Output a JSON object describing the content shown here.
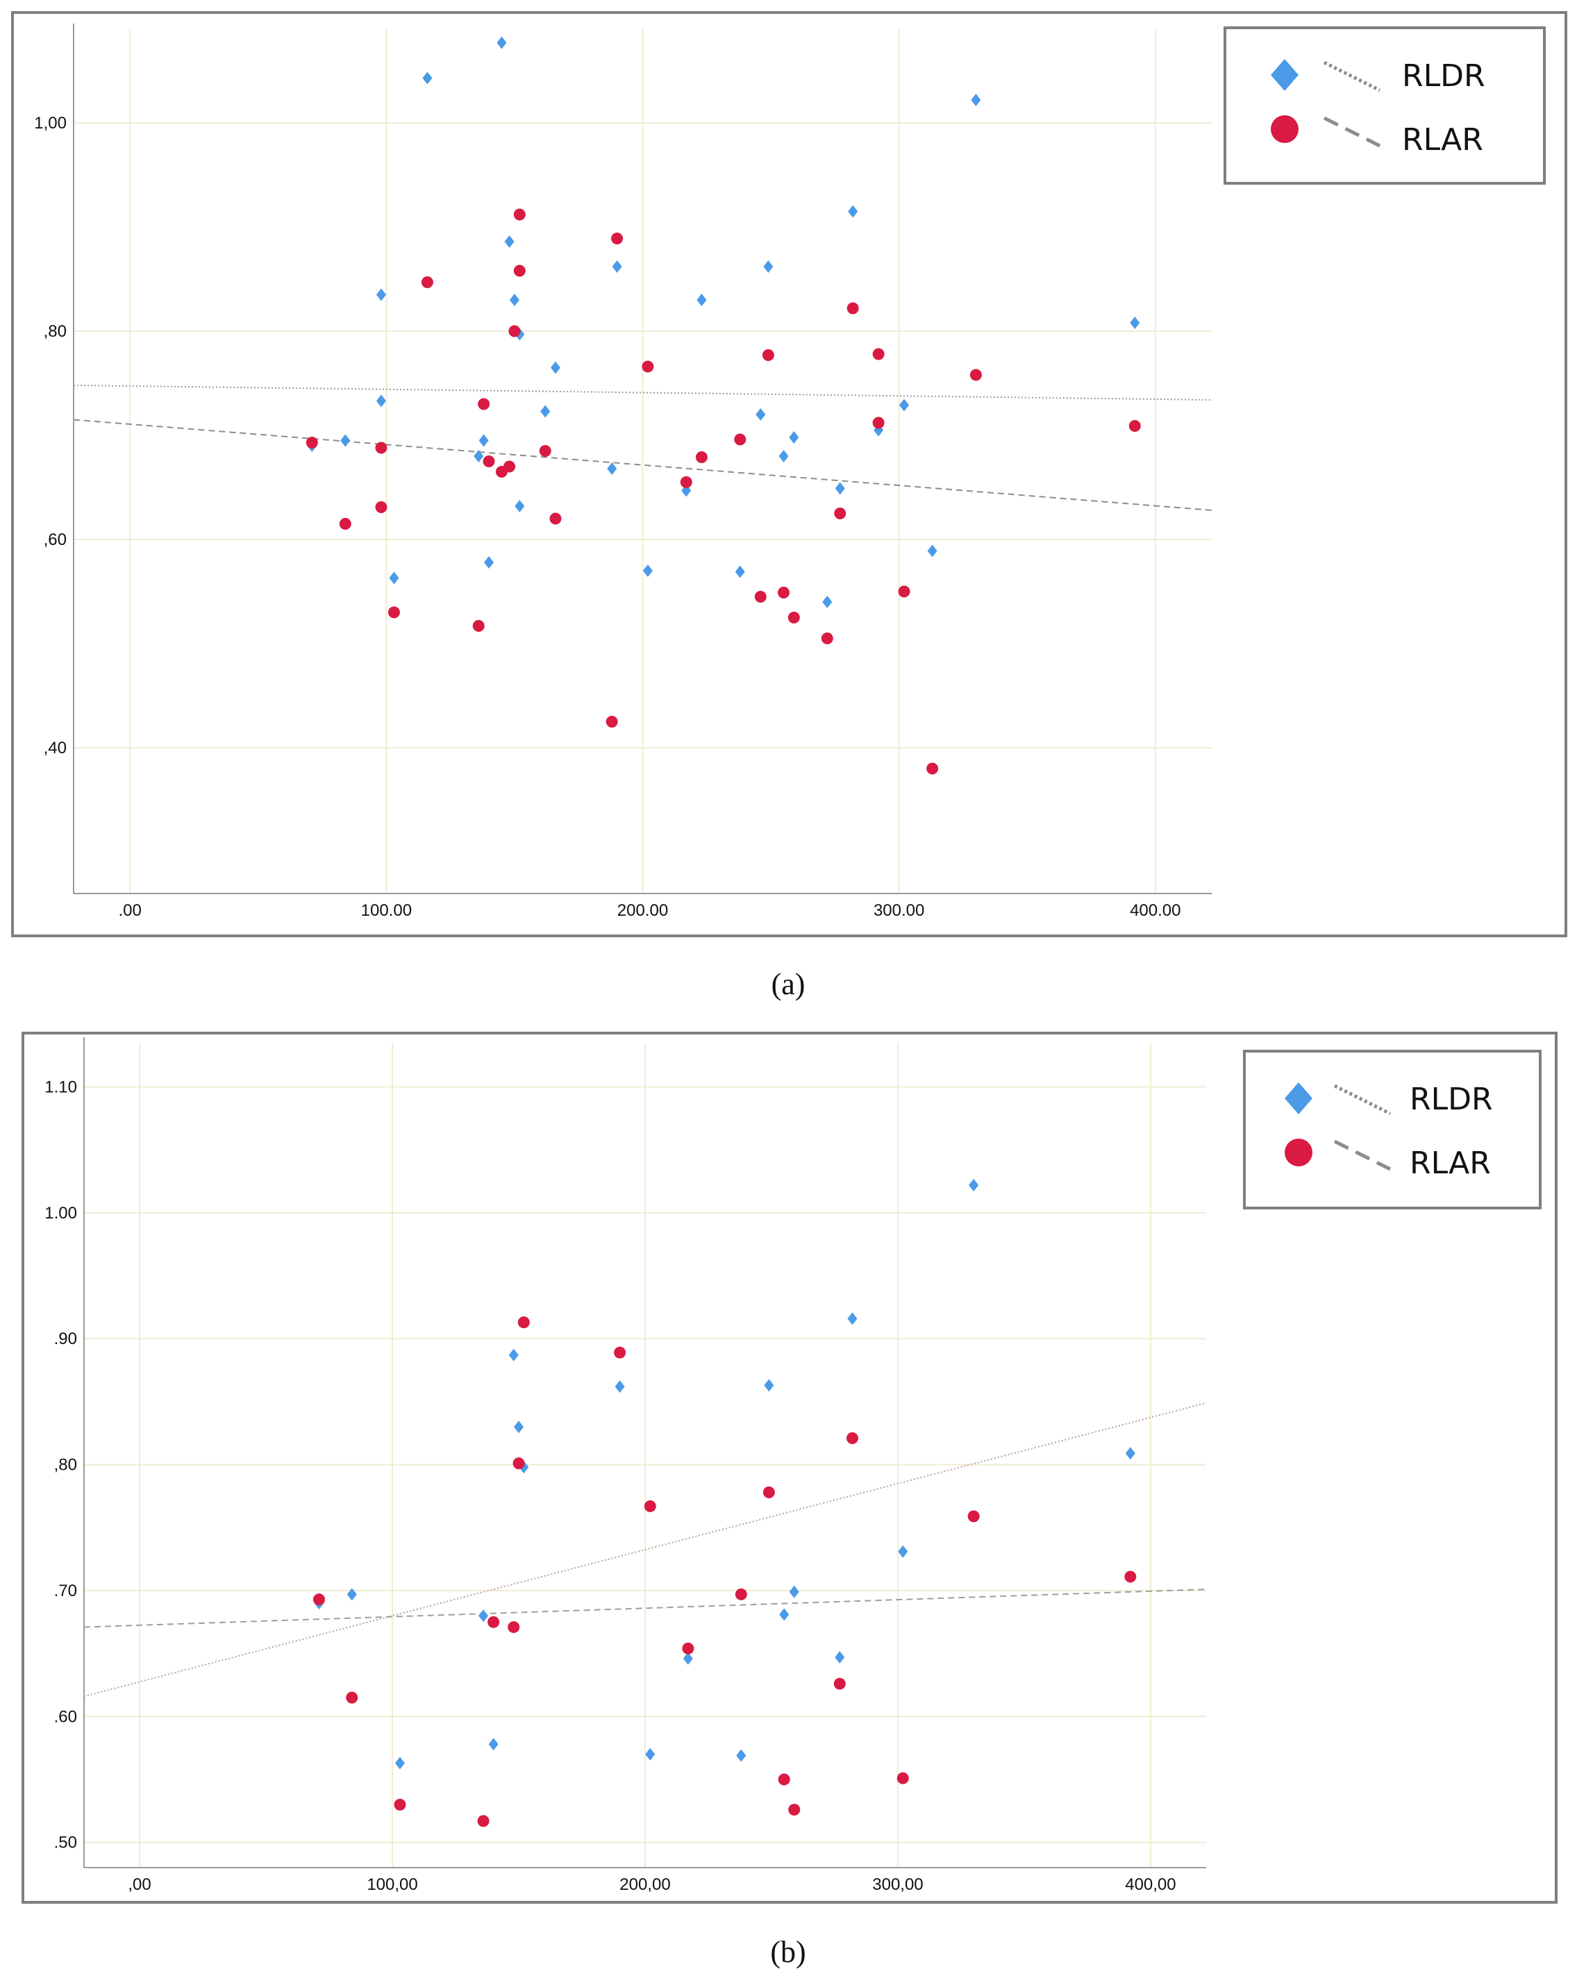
{
  "colors": {
    "rldr": "#4a9ae8",
    "rlar": "#d91a42",
    "gridline": "#f0ecd2",
    "frame": "#7f7f7f",
    "axis": "#9a9a9a",
    "trend_rldr": "#9a9a9a",
    "trend_rlar": "#8c8c8c",
    "trend_rldr_b": "#b89e9e",
    "trend_rlar_b": "#9e9e9e"
  },
  "legend": {
    "rldr": "RLDR",
    "rlar": "RLAR",
    "rldr_icon": "diamond-icon",
    "rlar_icon": "circle-icon",
    "rldr_line_icon": "dotted-line-icon",
    "rlar_line_icon": "dashed-line-icon"
  },
  "chart_data": [
    {
      "type": "scatter",
      "caption": "a",
      "caption_display": "(a)",
      "title": "",
      "xlabel": "",
      "ylabel": "",
      "xlim": [
        -22,
        422
      ],
      "ylim": [
        0.26,
        1.09
      ],
      "grid": true,
      "legend_position": "top-right",
      "x_ticks": [
        0,
        100,
        200,
        300,
        400
      ],
      "x_tick_labels": [
        ".00",
        "100.00",
        "200.00",
        "300.00",
        "400.00"
      ],
      "y_ticks": [
        0.4,
        0.6,
        0.8,
        1.0
      ],
      "y_tick_labels": [
        ",40",
        ",60",
        ",80",
        "1,00"
      ],
      "series": [
        {
          "name": "RLDR",
          "marker": "diamond",
          "points": [
            [
              71,
              0.69
            ],
            [
              84,
              0.695
            ],
            [
              98,
              0.835
            ],
            [
              98,
              0.733
            ],
            [
              103,
              0.563
            ],
            [
              116,
              1.043
            ],
            [
              136,
              0.68
            ],
            [
              138,
              0.695
            ],
            [
              140,
              0.578
            ],
            [
              145,
              1.077
            ],
            [
              148,
              0.886
            ],
            [
              150,
              0.83
            ],
            [
              152,
              0.797
            ],
            [
              152,
              0.632
            ],
            [
              162,
              0.723
            ],
            [
              166,
              0.765
            ],
            [
              188,
              0.668
            ],
            [
              190,
              0.862
            ],
            [
              202,
              0.57
            ],
            [
              217,
              0.647
            ],
            [
              223,
              0.83
            ],
            [
              238,
              0.569
            ],
            [
              246,
              0.72
            ],
            [
              249,
              0.862
            ],
            [
              255,
              0.68
            ],
            [
              259,
              0.698
            ],
            [
              272,
              0.54
            ],
            [
              277,
              0.649
            ],
            [
              282,
              0.915
            ],
            [
              292,
              0.705
            ],
            [
              302,
              0.729
            ],
            [
              313,
              0.589
            ],
            [
              330,
              1.022
            ],
            [
              392,
              0.808
            ]
          ],
          "trend": {
            "style": "dotted",
            "x": [
              -22,
              422
            ],
            "y": [
              0.748,
              0.734
            ]
          }
        },
        {
          "name": "RLAR",
          "marker": "circle",
          "points": [
            [
              71,
              0.693
            ],
            [
              84,
              0.615
            ],
            [
              98,
              0.688
            ],
            [
              98,
              0.631
            ],
            [
              103,
              0.53
            ],
            [
              116,
              0.847
            ],
            [
              136,
              0.517
            ],
            [
              138,
              0.73
            ],
            [
              140,
              0.675
            ],
            [
              145,
              0.665
            ],
            [
              148,
              0.67
            ],
            [
              150,
              0.8
            ],
            [
              152,
              0.912
            ],
            [
              152,
              0.858
            ],
            [
              162,
              0.685
            ],
            [
              166,
              0.62
            ],
            [
              188,
              0.425
            ],
            [
              190,
              0.889
            ],
            [
              202,
              0.766
            ],
            [
              217,
              0.655
            ],
            [
              223,
              0.679
            ],
            [
              238,
              0.696
            ],
            [
              246,
              0.545
            ],
            [
              249,
              0.777
            ],
            [
              255,
              0.549
            ],
            [
              259,
              0.525
            ],
            [
              272,
              0.505
            ],
            [
              277,
              0.625
            ],
            [
              282,
              0.822
            ],
            [
              292,
              0.712
            ],
            [
              292,
              0.778
            ],
            [
              302,
              0.55
            ],
            [
              313,
              0.38
            ],
            [
              330,
              0.758
            ],
            [
              392,
              0.709
            ]
          ],
          "trend": {
            "style": "dashed",
            "x": [
              -22,
              422
            ],
            "y": [
              0.715,
              0.628
            ]
          }
        }
      ]
    },
    {
      "type": "scatter",
      "caption": "b",
      "caption_display": "(b)",
      "title": "",
      "xlabel": "",
      "ylabel": "",
      "xlim": [
        -22,
        422
      ],
      "ylim": [
        0.48,
        1.135
      ],
      "grid": true,
      "legend_position": "top-right",
      "x_ticks": [
        0,
        100,
        200,
        300,
        400
      ],
      "x_tick_labels": [
        ",00",
        "100,00",
        "200,00",
        "300,00",
        "400,00"
      ],
      "y_ticks": [
        0.5,
        0.6,
        0.7,
        0.8,
        0.9,
        1.0,
        1.1
      ],
      "y_tick_labels": [
        ".50",
        ".60",
        ".70",
        ",80",
        ".90",
        "1.00",
        "1.10"
      ],
      "series": [
        {
          "name": "RLDR",
          "marker": "diamond",
          "points": [
            [
              71,
              0.69
            ],
            [
              84,
              0.697
            ],
            [
              103,
              0.563
            ],
            [
              136,
              0.68
            ],
            [
              140,
              0.578
            ],
            [
              148,
              0.887
            ],
            [
              150,
              0.83
            ],
            [
              152,
              0.798
            ],
            [
              190,
              0.862
            ],
            [
              202,
              0.57
            ],
            [
              217,
              0.646
            ],
            [
              238,
              0.569
            ],
            [
              249,
              0.863
            ],
            [
              255,
              0.681
            ],
            [
              259,
              0.699
            ],
            [
              277,
              0.647
            ],
            [
              282,
              0.916
            ],
            [
              302,
              0.731
            ],
            [
              330,
              1.022
            ],
            [
              392,
              0.809
            ]
          ],
          "trend": {
            "style": "dotted",
            "x": [
              -22,
              422
            ],
            "y": [
              0.616,
              0.849
            ]
          }
        },
        {
          "name": "RLAR",
          "marker": "circle",
          "points": [
            [
              71,
              0.693
            ],
            [
              84,
              0.615
            ],
            [
              103,
              0.53
            ],
            [
              136,
              0.517
            ],
            [
              140,
              0.675
            ],
            [
              148,
              0.671
            ],
            [
              150,
              0.801
            ],
            [
              152,
              0.913
            ],
            [
              190,
              0.889
            ],
            [
              202,
              0.767
            ],
            [
              217,
              0.654
            ],
            [
              238,
              0.697
            ],
            [
              249,
              0.778
            ],
            [
              255,
              0.55
            ],
            [
              259,
              0.526
            ],
            [
              277,
              0.626
            ],
            [
              282,
              0.821
            ],
            [
              302,
              0.551
            ],
            [
              330,
              0.759
            ],
            [
              392,
              0.711
            ]
          ],
          "trend": {
            "style": "dashed",
            "x": [
              -22,
              422
            ],
            "y": [
              0.671,
              0.701
            ]
          }
        }
      ]
    }
  ]
}
